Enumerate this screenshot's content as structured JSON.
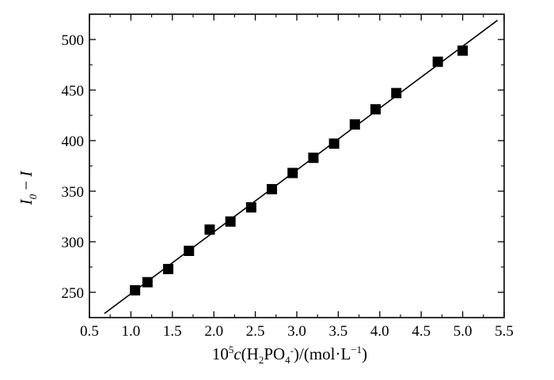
{
  "chart_data": {
    "type": "scatter",
    "title": "",
    "xlabel": {
      "prefix": "10",
      "exp": "5",
      "var": "c",
      "open": "(H",
      "sub1": "2",
      "mid": "PO",
      "sub2": "4",
      "sup2": "-",
      "close": ")/(mol·L",
      "unit_exp": "−1",
      "end": ")"
    },
    "ylabel": {
      "main": "I",
      "sub": "0",
      "op": " − ",
      "tail": "I"
    },
    "xlim": [
      0.5,
      5.5
    ],
    "ylim": [
      225,
      525
    ],
    "x_ticks": [
      "0.5",
      "1.0",
      "1.5",
      "2.0",
      "2.5",
      "3.0",
      "3.5",
      "4.0",
      "4.5",
      "5.0",
      "5.5"
    ],
    "y_ticks": [
      "250",
      "300",
      "350",
      "400",
      "450",
      "500"
    ],
    "grid": false,
    "legend": "none",
    "series": [
      {
        "marker": "square",
        "color": "#000000",
        "x": [
          1.05,
          1.2,
          1.45,
          1.7,
          1.95,
          2.2,
          2.45,
          2.7,
          2.95,
          3.2,
          3.45,
          3.7,
          3.95,
          4.2,
          4.7,
          5.0
        ],
        "y": [
          252,
          260,
          273,
          291,
          312,
          320,
          334,
          352,
          368,
          383,
          397,
          416,
          431,
          447,
          478,
          489
        ]
      }
    ],
    "fit_line": {
      "x": [
        0.68,
        5.42
      ],
      "y": [
        229,
        519
      ],
      "color": "#000000"
    }
  }
}
